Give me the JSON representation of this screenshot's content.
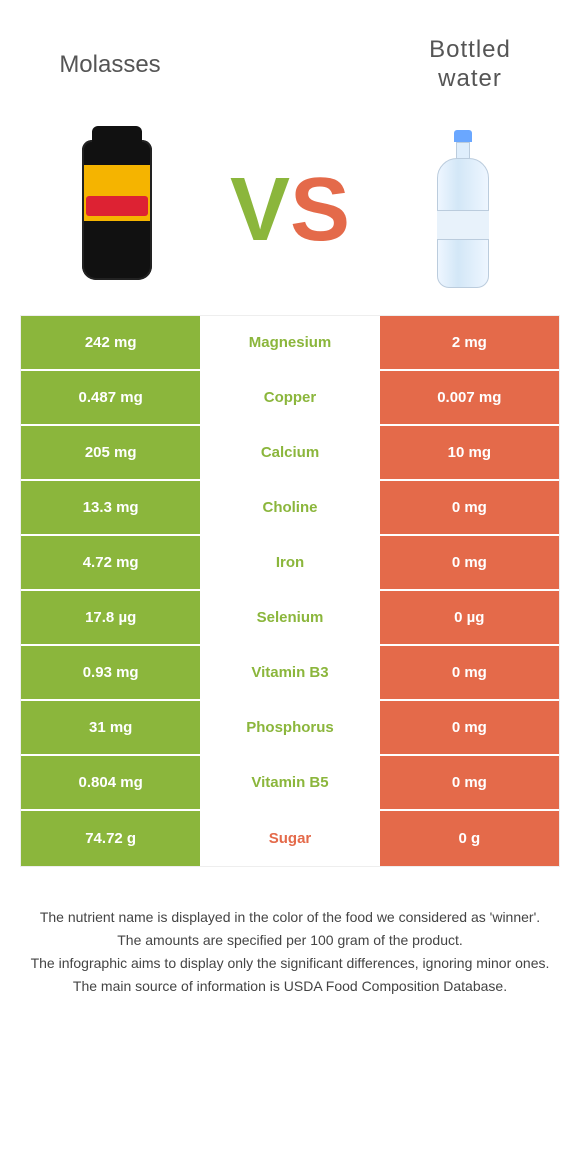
{
  "header": {
    "left": "Molasses",
    "right": "Bottled\nwater"
  },
  "vs": {
    "v": "V",
    "s": "S"
  },
  "colors": {
    "left": "#8bb63c",
    "right": "#e46a4a",
    "text": "#444444"
  },
  "rows": [
    {
      "nutrient": "Magnesium",
      "left": "242 mg",
      "right": "2 mg",
      "winner": "left"
    },
    {
      "nutrient": "Copper",
      "left": "0.487 mg",
      "right": "0.007 mg",
      "winner": "left"
    },
    {
      "nutrient": "Calcium",
      "left": "205 mg",
      "right": "10 mg",
      "winner": "left"
    },
    {
      "nutrient": "Choline",
      "left": "13.3 mg",
      "right": "0 mg",
      "winner": "left"
    },
    {
      "nutrient": "Iron",
      "left": "4.72 mg",
      "right": "0 mg",
      "winner": "left"
    },
    {
      "nutrient": "Selenium",
      "left": "17.8 µg",
      "right": "0 µg",
      "winner": "left"
    },
    {
      "nutrient": "Vitamin B3",
      "left": "0.93 mg",
      "right": "0 mg",
      "winner": "left"
    },
    {
      "nutrient": "Phosphorus",
      "left": "31 mg",
      "right": "0 mg",
      "winner": "left"
    },
    {
      "nutrient": "Vitamin B5",
      "left": "0.804 mg",
      "right": "0 mg",
      "winner": "left"
    },
    {
      "nutrient": "Sugar",
      "left": "74.72 g",
      "right": "0 g",
      "winner": "right"
    }
  ],
  "footnotes": [
    "The nutrient name is displayed in the color of the food we considered as 'winner'.",
    "The amounts are specified per 100 gram of the product.",
    "The infographic aims to display only the significant differences, ignoring minor ones.",
    "The main source of information is USDA Food Composition Database."
  ]
}
